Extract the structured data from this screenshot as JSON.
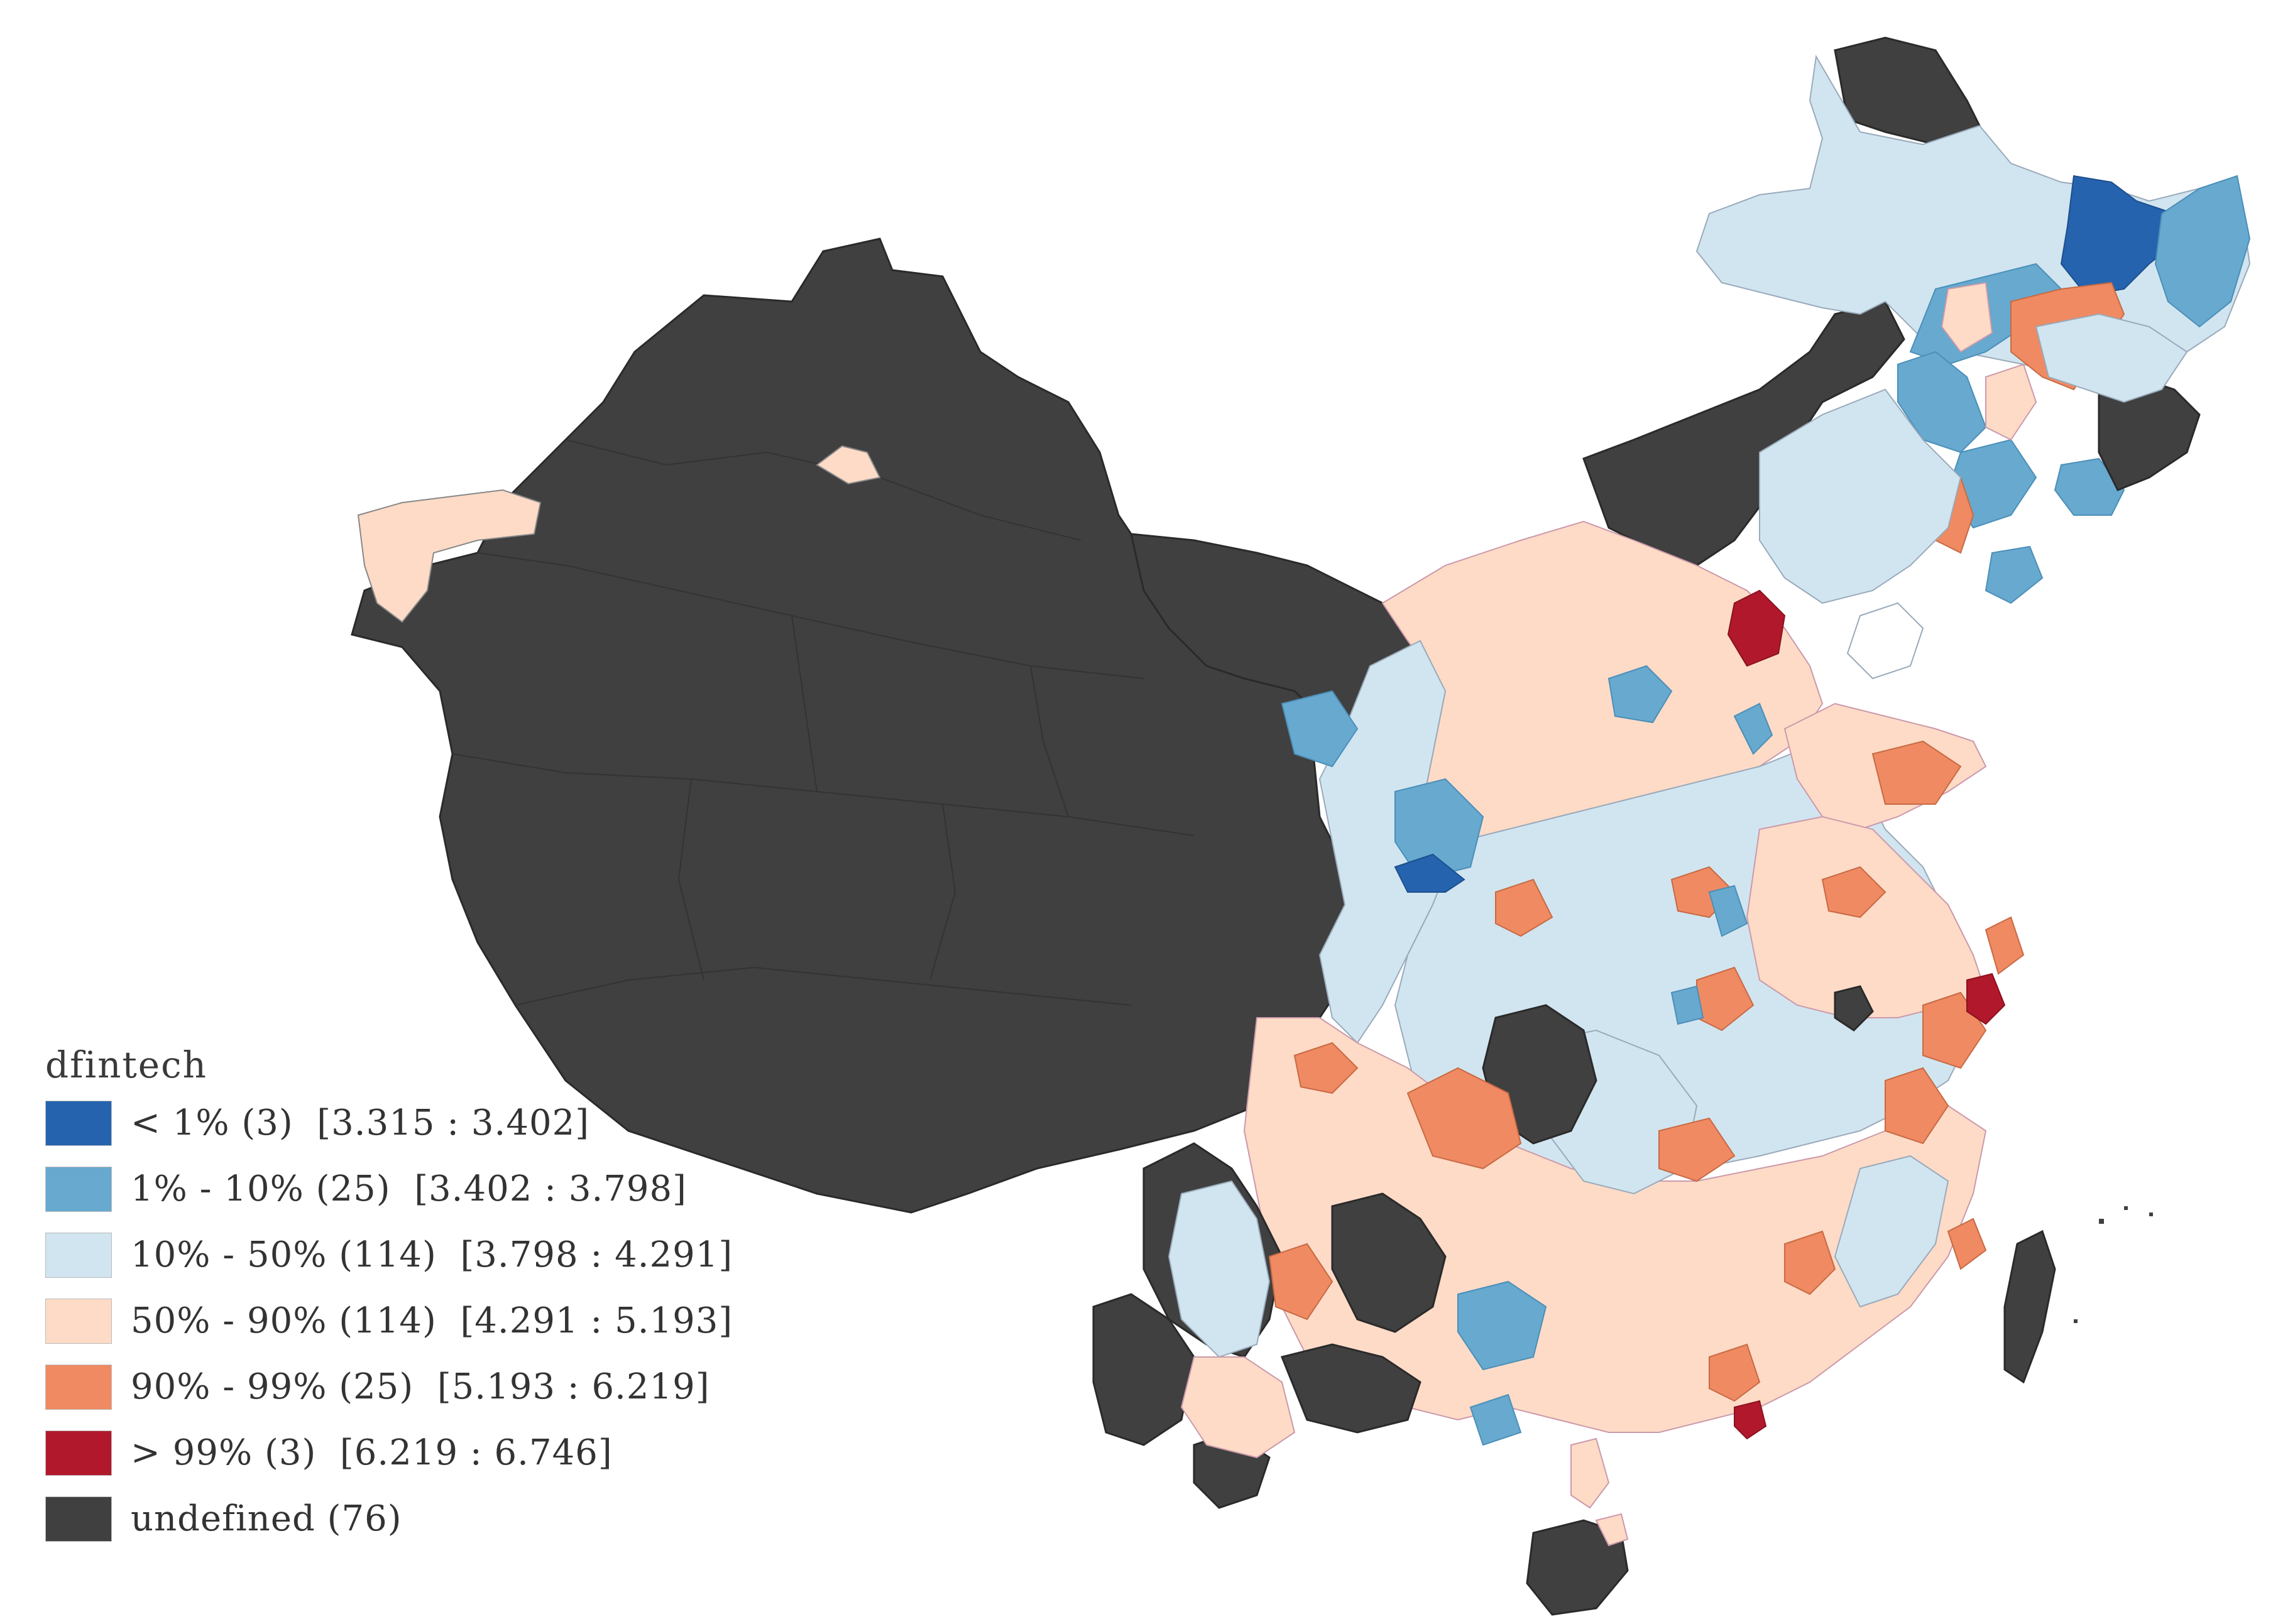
{
  "legend": {
    "title": "dfintech",
    "items": [
      {
        "label": "< 1% (3)  [3.315 : 3.402]",
        "color": "#2563af"
      },
      {
        "label": "1% - 10% (25)  [3.402 : 3.798]",
        "color": "#67a9cf"
      },
      {
        "label": "10% - 50% (114)  [3.798 : 4.291]",
        "color": "#d1e5f0"
      },
      {
        "label": "50% - 90% (114)  [4.291 : 5.193]",
        "color": "#fddbc7"
      },
      {
        "label": "90% - 99% (25)  [5.193 : 6.219]",
        "color": "#ef8a62"
      },
      {
        "label": "> 99% (3)  [6.219 : 6.746]",
        "color": "#b2182b"
      },
      {
        "label": "undefined (76)",
        "color": "#404040"
      }
    ]
  }
}
